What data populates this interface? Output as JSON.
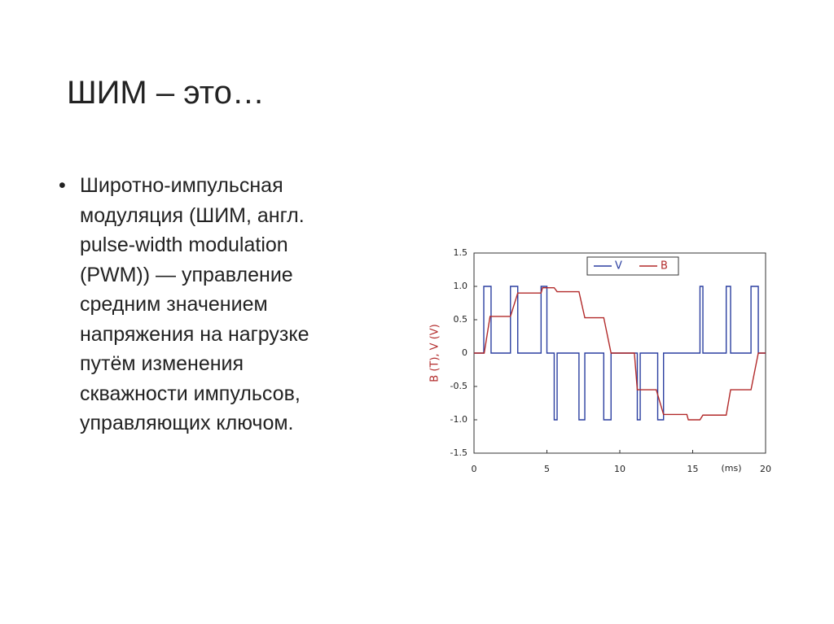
{
  "slide": {
    "title": "ШИМ – это…",
    "bullet_lines": [
      "Широтно-импульсная",
      "модуляция (ШИМ, англ.",
      "pulse-width modulation",
      "(PWM)) — управление",
      "средним значением",
      "напряжения на нагрузке",
      "путём изменения",
      "скважности импульсов,",
      "управляющих ключом."
    ]
  },
  "chart_data": {
    "type": "line",
    "y_label": "B (T), V (V)",
    "x_unit_label": "(ms)",
    "xlim": [
      0,
      20
    ],
    "xticks": [
      0,
      5,
      10,
      15,
      20
    ],
    "ylim": [
      -1.5,
      1.5
    ],
    "yticks": [
      1.5,
      {
        "value": 1,
        "label": "1.0"
      },
      0.5,
      0,
      -0.5,
      {
        "value": -1,
        "label": "-1.0"
      },
      -1.5
    ],
    "legend": "top-right",
    "grid": false,
    "series": [
      {
        "name": "V",
        "color": "#2b3fa0",
        "x": [
          0,
          0.67,
          0.67,
          1.17,
          1.17,
          2.5,
          2.5,
          3.0,
          3.0,
          4.6,
          4.6,
          5.0,
          5.0,
          5.5,
          5.5,
          5.7,
          5.7,
          7.2,
          7.2,
          7.6,
          7.6,
          8.9,
          8.9,
          9.4,
          9.4,
          11.2,
          11.2,
          11.4,
          11.4,
          12.6,
          12.6,
          13.0,
          13.0,
          15.5,
          15.5,
          15.7,
          15.7,
          17.3,
          17.3,
          17.6,
          17.6,
          19.0,
          19.0,
          19.5,
          19.5,
          20
        ],
        "values": [
          0,
          0,
          1,
          1,
          0,
          0,
          1,
          1,
          0,
          0,
          1,
          1,
          0,
          0,
          -1,
          -1,
          0,
          0,
          -1,
          -1,
          0,
          0,
          -1,
          -1,
          0,
          0,
          -1,
          -1,
          0,
          0,
          -1,
          -1,
          0,
          0,
          1,
          1,
          0,
          0,
          1,
          1,
          0,
          0,
          1,
          1,
          0,
          0
        ]
      },
      {
        "name": "B",
        "color": "#b22a2a",
        "x": [
          0,
          0.7,
          1.1,
          2.5,
          3.0,
          4.6,
          4.7,
          5.5,
          5.7,
          7.2,
          7.6,
          8.9,
          9.4,
          11.0,
          11.2,
          12.5,
          13.0,
          14.6,
          14.7,
          15.5,
          15.7,
          17.3,
          17.6,
          19.0,
          19.5,
          20
        ],
        "values": [
          0,
          0,
          0.55,
          0.55,
          0.9,
          0.9,
          0.98,
          0.98,
          0.92,
          0.92,
          0.53,
          0.53,
          0,
          0,
          -0.55,
          -0.55,
          -0.92,
          -0.92,
          -1.0,
          -1.0,
          -0.93,
          -0.93,
          -0.55,
          -0.55,
          0,
          0
        ]
      }
    ]
  }
}
